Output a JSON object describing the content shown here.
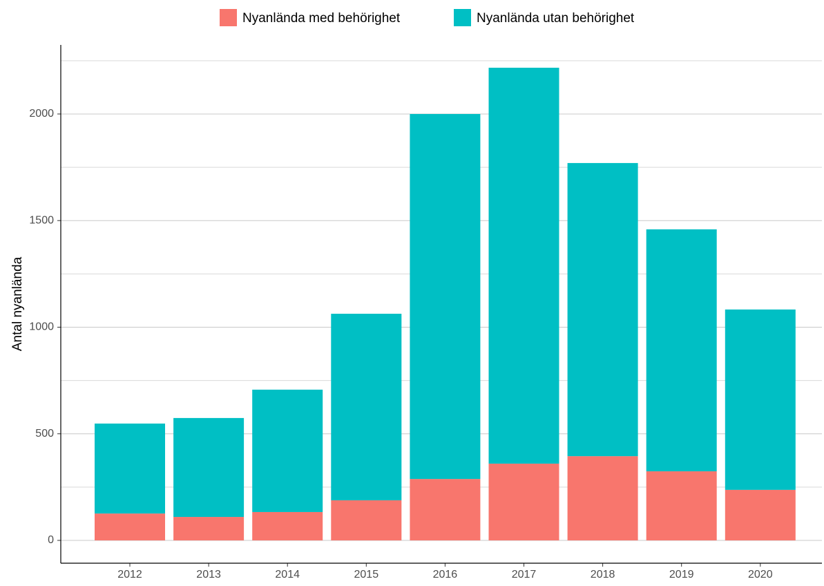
{
  "chart_data": {
    "type": "stacked_bar",
    "y_label": "Antal nyanlända",
    "categories": [
      "2012",
      "2013",
      "2014",
      "2015",
      "2016",
      "2017",
      "2018",
      "2019",
      "2020"
    ],
    "series": [
      {
        "name": "Nyanlända med behörighet",
        "color": "#f8766d",
        "values": [
          126,
          110,
          133,
          188,
          288,
          360,
          395,
          324,
          237
        ]
      },
      {
        "name": "Nyanlända utan behörighet",
        "color": "#00bfc4",
        "values": [
          422,
          464,
          574,
          875,
          1712,
          1857,
          1375,
          1135,
          846
        ]
      }
    ],
    "ylim": [
      -107,
      2324
    ],
    "yticks": [
      0,
      500,
      1000,
      1500,
      2000
    ],
    "y_minor_ticks": [
      250,
      750,
      1250,
      1750,
      2250
    ],
    "grid": true,
    "legend": "top"
  }
}
